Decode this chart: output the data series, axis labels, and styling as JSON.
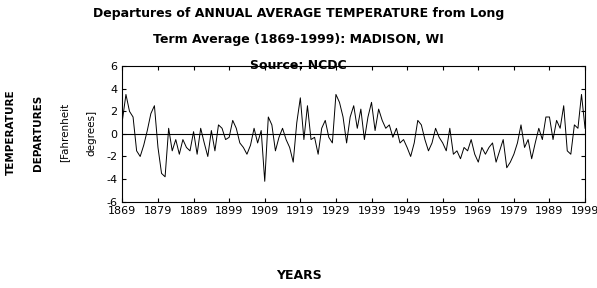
{
  "title_line1": "Departures of ANNUAL AVERAGE TEMPERATURE from Long",
  "title_line2": "Term Average (1869-1999): MADISON, WI",
  "title_line3": "Source: NCDC",
  "xlabel": "YEARS",
  "ylabel_line1": "TEMPERATURE",
  "ylabel_line2": "DEPARTURES",
  "ylabel_line3": "[Fahrenheit",
  "ylabel_line4": "degrees]",
  "xlim": [
    1869,
    1999
  ],
  "ylim": [
    -6,
    6
  ],
  "yticks": [
    -6,
    -4,
    -2,
    0,
    2,
    4,
    6
  ],
  "xticks": [
    1869,
    1879,
    1889,
    1899,
    1909,
    1919,
    1929,
    1939,
    1949,
    1959,
    1969,
    1979,
    1989,
    1999
  ],
  "line_color": "#000000",
  "bg_color": "#ffffff",
  "title_fontsize": 9,
  "axis_label_fontsize": 9,
  "tick_fontsize": 8,
  "ylabel_fontsize": 7.5,
  "years": [
    1869,
    1870,
    1871,
    1872,
    1873,
    1874,
    1875,
    1876,
    1877,
    1878,
    1879,
    1880,
    1881,
    1882,
    1883,
    1884,
    1885,
    1886,
    1887,
    1888,
    1889,
    1890,
    1891,
    1892,
    1893,
    1894,
    1895,
    1896,
    1897,
    1898,
    1899,
    1900,
    1901,
    1902,
    1903,
    1904,
    1905,
    1906,
    1907,
    1908,
    1909,
    1910,
    1911,
    1912,
    1913,
    1914,
    1915,
    1916,
    1917,
    1918,
    1919,
    1920,
    1921,
    1922,
    1923,
    1924,
    1925,
    1926,
    1927,
    1928,
    1929,
    1930,
    1931,
    1932,
    1933,
    1934,
    1935,
    1936,
    1937,
    1938,
    1939,
    1940,
    1941,
    1942,
    1943,
    1944,
    1945,
    1946,
    1947,
    1948,
    1949,
    1950,
    1951,
    1952,
    1953,
    1954,
    1955,
    1956,
    1957,
    1958,
    1959,
    1960,
    1961,
    1962,
    1963,
    1964,
    1965,
    1966,
    1967,
    1968,
    1969,
    1970,
    1971,
    1972,
    1973,
    1974,
    1975,
    1976,
    1977,
    1978,
    1979,
    1980,
    1981,
    1982,
    1983,
    1984,
    1985,
    1986,
    1987,
    1988,
    1989,
    1990,
    1991,
    1992,
    1993,
    1994,
    1995,
    1996,
    1997,
    1998,
    1999
  ],
  "departures": [
    1.2,
    3.5,
    2.0,
    1.5,
    -1.5,
    -2.0,
    -1.0,
    0.3,
    1.8,
    2.5,
    -1.2,
    -3.5,
    -3.8,
    0.5,
    -1.5,
    -0.5,
    -1.8,
    -0.5,
    -1.2,
    -1.5,
    0.2,
    -1.8,
    0.5,
    -0.8,
    -2.0,
    0.3,
    -1.5,
    0.8,
    0.5,
    -0.5,
    -0.3,
    1.2,
    0.5,
    -0.8,
    -1.2,
    -1.8,
    -1.0,
    0.5,
    -0.8,
    0.3,
    -4.2,
    1.5,
    0.8,
    -1.5,
    -0.3,
    0.5,
    -0.5,
    -1.2,
    -2.5,
    1.0,
    3.2,
    -0.5,
    2.5,
    -0.5,
    -0.3,
    -1.8,
    0.5,
    1.2,
    -0.3,
    -0.8,
    3.5,
    2.8,
    1.5,
    -0.8,
    1.5,
    2.5,
    0.5,
    2.2,
    -0.5,
    1.5,
    2.8,
    0.3,
    2.2,
    1.2,
    0.5,
    0.8,
    -0.3,
    0.5,
    -0.8,
    -0.5,
    -1.2,
    -2.0,
    -0.8,
    1.2,
    0.8,
    -0.5,
    -1.5,
    -0.8,
    0.5,
    -0.3,
    -0.8,
    -1.5,
    0.5,
    -1.8,
    -1.5,
    -2.2,
    -1.2,
    -1.5,
    -0.5,
    -1.8,
    -2.5,
    -1.2,
    -1.8,
    -1.2,
    -0.8,
    -2.5,
    -1.5,
    -0.5,
    -3.0,
    -2.5,
    -1.8,
    -0.8,
    0.8,
    -1.2,
    -0.5,
    -2.2,
    -0.8,
    0.5,
    -0.5,
    1.5,
    1.5,
    -0.5,
    1.2,
    0.5,
    2.5,
    -1.5,
    -1.8,
    0.8,
    0.5,
    3.5,
    0.5
  ]
}
